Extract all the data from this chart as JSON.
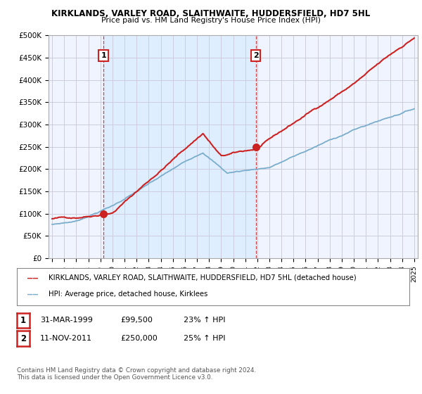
{
  "title": "KIRKLANDS, VARLEY ROAD, SLAITHWAITE, HUDDERSFIELD, HD7 5HL",
  "subtitle": "Price paid vs. HM Land Registry's House Price Index (HPI)",
  "yticks": [
    0,
    50000,
    100000,
    150000,
    200000,
    250000,
    300000,
    350000,
    400000,
    450000,
    500000
  ],
  "ytick_labels": [
    "£0",
    "£50K",
    "£100K",
    "£150K",
    "£200K",
    "£250K",
    "£300K",
    "£350K",
    "£400K",
    "£450K",
    "£500K"
  ],
  "xlim_start": 1994.7,
  "xlim_end": 2025.3,
  "ylim_min": 0,
  "ylim_max": 500000,
  "sale_prices": [
    99500,
    250000
  ],
  "legend_line1": "KIRKLANDS, VARLEY ROAD, SLAITHWAITE, HUDDERSFIELD, HD7 5HL (detached house)",
  "legend_line2": "HPI: Average price, detached house, Kirklees",
  "table_row1": [
    "1",
    "31-MAR-1999",
    "£99,500",
    "23% ↑ HPI"
  ],
  "table_row2": [
    "2",
    "11-NOV-2011",
    "£250,000",
    "25% ↑ HPI"
  ],
  "footnote": "Contains HM Land Registry data © Crown copyright and database right 2024.\nThis data is licensed under the Open Government Licence v3.0.",
  "red_color": "#cc2222",
  "blue_color": "#7aadcc",
  "shade_color": "#ddeeff",
  "grid_color": "#ccccdd",
  "background_color": "#ffffff",
  "plot_bg_color": "#f0f4ff"
}
